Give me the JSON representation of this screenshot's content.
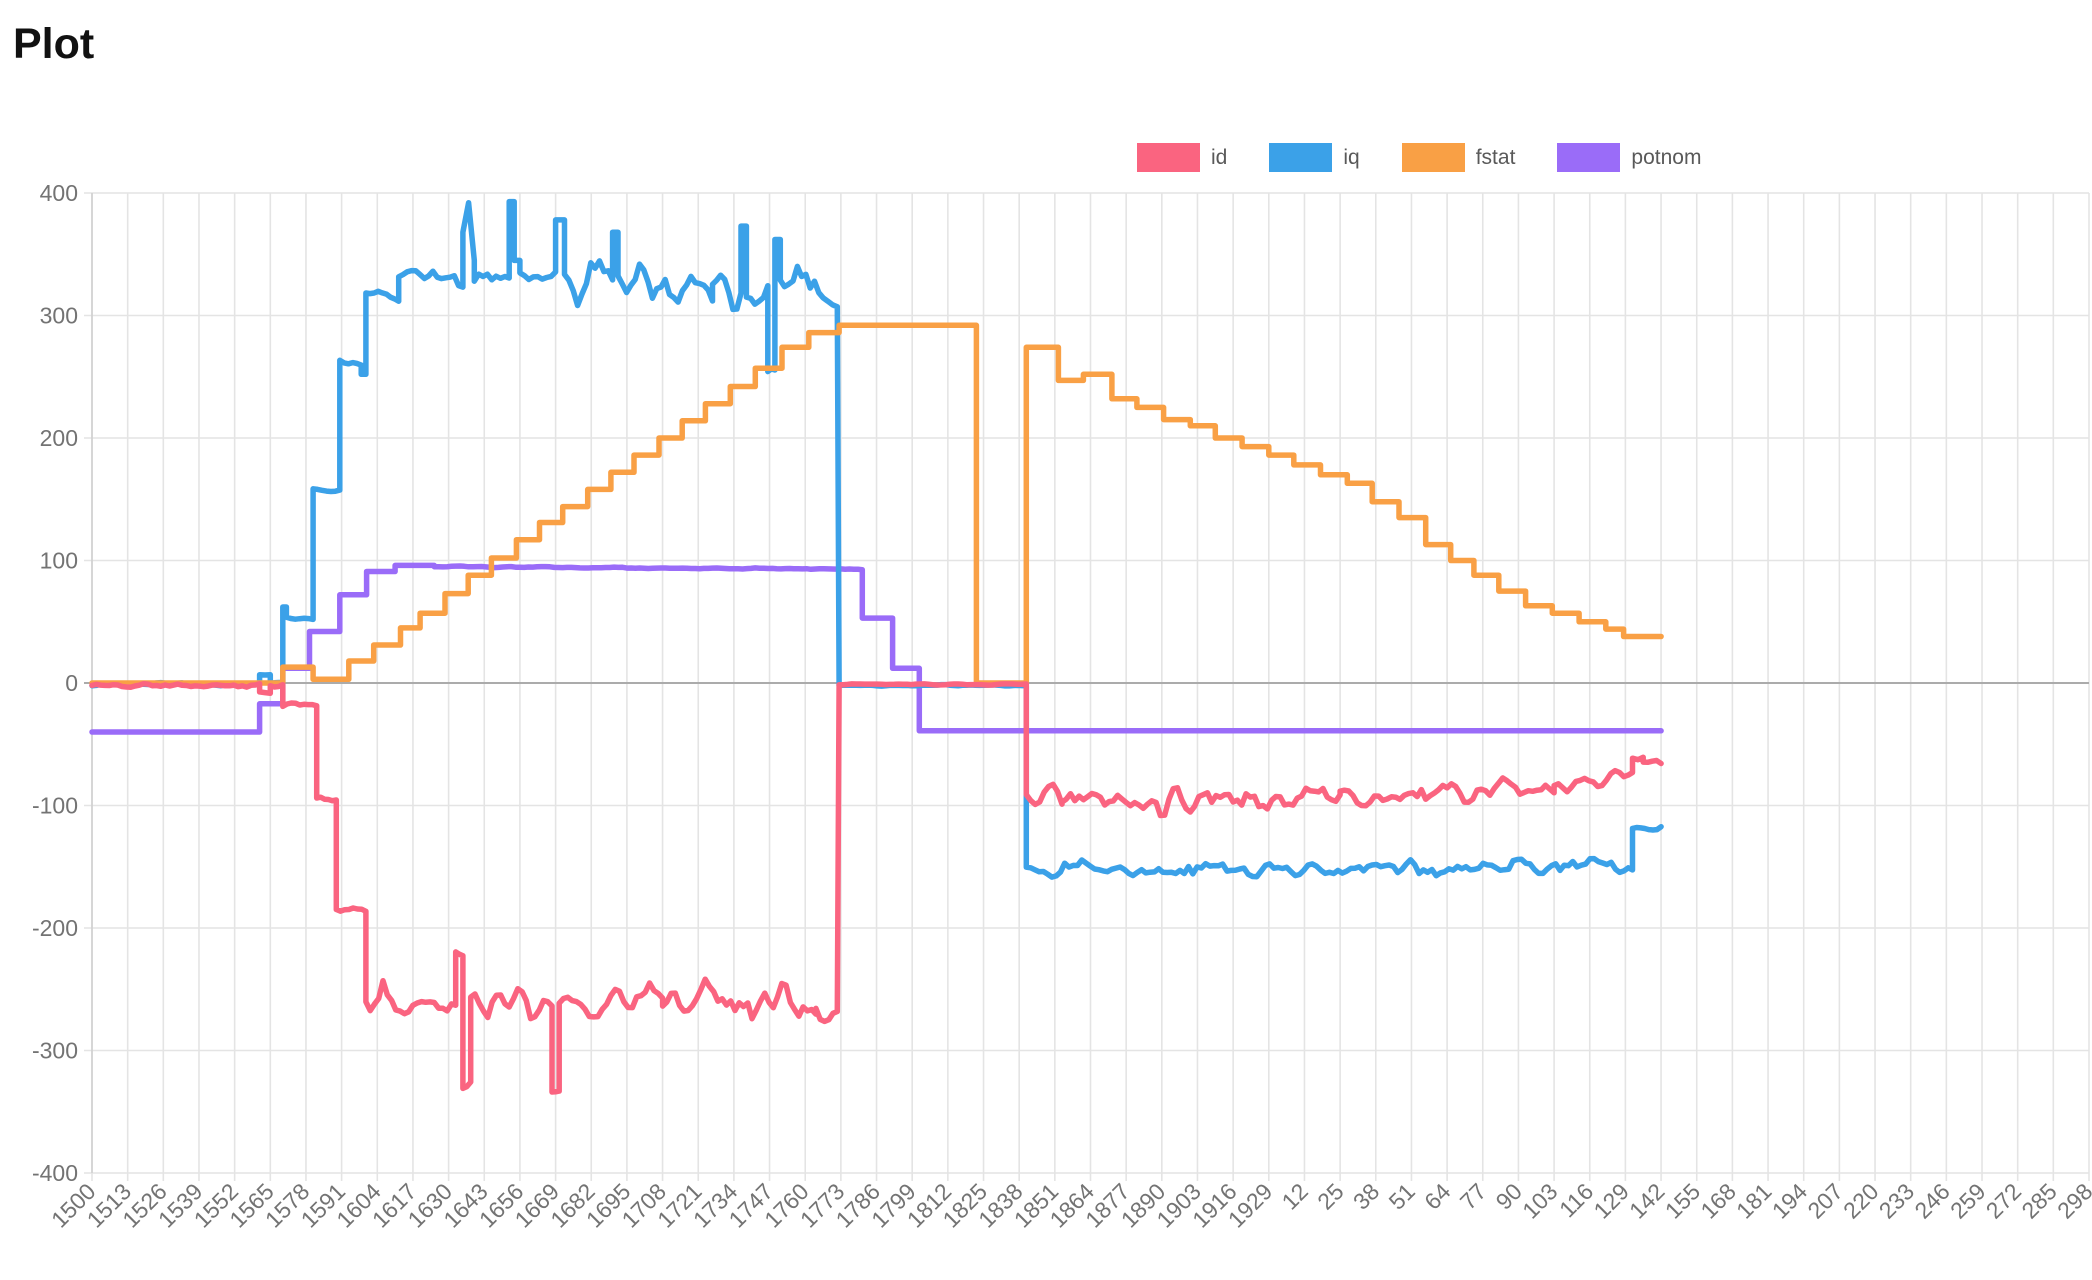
{
  "chart_data": {
    "type": "line",
    "title": "Plot",
    "x_encoding": "u = x-axis tick index; each tick step = 13 x-units; tick labels wrap after 1929",
    "x_ticks": [
      "1500",
      "1513",
      "1526",
      "1539",
      "1552",
      "1565",
      "1578",
      "1591",
      "1604",
      "1617",
      "1630",
      "1643",
      "1656",
      "1669",
      "1682",
      "1695",
      "1708",
      "1721",
      "1734",
      "1747",
      "1760",
      "1773",
      "1786",
      "1799",
      "1812",
      "1825",
      "1838",
      "1851",
      "1864",
      "1877",
      "1890",
      "1903",
      "1916",
      "1929",
      "12",
      "25",
      "38",
      "51",
      "64",
      "77",
      "90",
      "103",
      "116",
      "129",
      "142",
      "155",
      "168",
      "181",
      "194",
      "207",
      "220",
      "233",
      "246",
      "259",
      "272",
      "285",
      "298"
    ],
    "y_ticks": [
      400,
      300,
      200,
      100,
      0,
      -100,
      -200,
      -300,
      -400
    ],
    "y_range": [
      -400,
      400
    ],
    "data_u_max": 44.0,
    "grid": {
      "line_color": "#E4E4E4",
      "zero_line_color": "#ABABAB",
      "axis_text_color": "#737373"
    },
    "legend_position": "top-right",
    "draw_order": [
      "potnom",
      "iq",
      "fstat",
      "id"
    ],
    "series": [
      {
        "name": "id",
        "color": "#FA6480",
        "noise_seed": 11,
        "profile": [
          [
            0,
            4.7,
            -2,
            -2,
            2
          ],
          [
            4.7,
            5.0,
            -8,
            -8,
            1.5
          ],
          [
            5.0,
            5.35,
            -2,
            -2,
            1.5
          ],
          [
            5.35,
            6.3,
            -18,
            -18,
            2
          ],
          [
            6.3,
            6.85,
            -95,
            -95,
            2.5
          ],
          [
            6.85,
            7.68,
            -185,
            -185,
            2.5
          ],
          [
            7.68,
            10.2,
            -260,
            -260,
            12
          ],
          [
            10.2,
            10.4,
            -222,
            -222,
            3
          ],
          [
            10.4,
            10.62,
            -328,
            -328,
            3
          ],
          [
            10.62,
            12.9,
            -262,
            -262,
            13
          ],
          [
            12.9,
            13.1,
            -331,
            -331,
            3
          ],
          [
            13.1,
            16.0,
            -262,
            -258,
            15
          ],
          [
            16.0,
            20.3,
            -258,
            -256,
            16
          ],
          [
            20.3,
            20.9,
            -266,
            -270,
            8
          ],
          [
            20.95,
            26.2,
            -1,
            -1,
            0.5
          ],
          [
            26.2,
            27.2,
            -90,
            -90,
            11
          ],
          [
            27.2,
            35.0,
            -94,
            -92,
            12
          ],
          [
            35.0,
            41.0,
            -92,
            -88,
            11
          ],
          [
            41.0,
            43.2,
            -84,
            -76,
            6
          ],
          [
            43.2,
            43.5,
            -62,
            -62,
            3
          ],
          [
            43.5,
            44.0,
            -66,
            -64,
            3
          ]
        ]
      },
      {
        "name": "iq",
        "color": "#3BA1E8",
        "noise_seed": 23,
        "profile": [
          [
            0,
            4.7,
            -1,
            -1,
            1
          ],
          [
            4.7,
            5.0,
            7,
            7,
            1
          ],
          [
            5.0,
            5.35,
            0,
            0,
            1
          ],
          [
            5.35,
            5.45,
            62,
            62,
            0
          ],
          [
            5.45,
            6.2,
            52,
            52,
            1.5
          ],
          [
            6.2,
            6.95,
            158,
            158,
            2
          ],
          [
            6.95,
            7.55,
            262,
            262,
            2
          ],
          [
            7.55,
            7.68,
            252,
            252,
            0
          ],
          [
            7.68,
            8.6,
            318,
            318,
            6
          ],
          [
            8.6,
            10.4,
            330,
            332,
            9
          ],
          [
            10.4,
            10.56,
            368,
            392,
            0
          ],
          [
            10.56,
            10.72,
            392,
            345,
            0
          ],
          [
            10.72,
            11.7,
            333,
            333,
            9
          ],
          [
            11.7,
            11.84,
            393,
            393,
            0
          ],
          [
            11.84,
            12.0,
            345,
            345,
            0
          ],
          [
            12.0,
            13.0,
            332,
            332,
            9
          ],
          [
            13.0,
            13.25,
            378,
            378,
            0
          ],
          [
            13.25,
            14.6,
            330,
            330,
            16
          ],
          [
            14.6,
            14.75,
            368,
            368,
            0
          ],
          [
            14.75,
            17.4,
            328,
            328,
            17
          ],
          [
            17.4,
            18.2,
            322,
            322,
            22
          ],
          [
            18.2,
            18.35,
            373,
            373,
            0
          ],
          [
            18.35,
            18.95,
            320,
            318,
            20
          ],
          [
            18.95,
            19.15,
            257,
            257,
            3
          ],
          [
            19.15,
            19.3,
            362,
            362,
            0
          ],
          [
            19.3,
            20.5,
            328,
            324,
            13
          ],
          [
            20.5,
            20.9,
            312,
            308,
            5
          ],
          [
            20.95,
            26.2,
            -2,
            -2,
            0.5
          ],
          [
            26.2,
            43.2,
            -152,
            -151,
            6.5
          ],
          [
            43.2,
            44.0,
            -119,
            -118,
            2
          ]
        ]
      },
      {
        "name": "fstat",
        "color": "#F9A045",
        "noise_seed": 37,
        "profile": [
          [
            0,
            5.35,
            0,
            0,
            0
          ],
          [
            5.35,
            6.2,
            13,
            13,
            0
          ],
          [
            6.2,
            7.2,
            3,
            3,
            0
          ],
          [
            7.2,
            7.9,
            18,
            18,
            0
          ],
          [
            7.9,
            8.65,
            31,
            31,
            0
          ],
          [
            8.65,
            9.2,
            45,
            45,
            0
          ],
          [
            9.2,
            9.9,
            57,
            57,
            0
          ],
          [
            9.9,
            10.55,
            73,
            73,
            0
          ],
          [
            10.55,
            11.2,
            88,
            88,
            0
          ],
          [
            11.2,
            11.9,
            102,
            102,
            0
          ],
          [
            11.9,
            12.55,
            117,
            117,
            0
          ],
          [
            12.55,
            13.2,
            131,
            131,
            0
          ],
          [
            13.2,
            13.9,
            144,
            144,
            0
          ],
          [
            13.9,
            14.55,
            158,
            158,
            0
          ],
          [
            14.55,
            15.2,
            172,
            172,
            0
          ],
          [
            15.2,
            15.9,
            186,
            186,
            0
          ],
          [
            15.9,
            16.55,
            200,
            200,
            0
          ],
          [
            16.55,
            17.2,
            214,
            214,
            0
          ],
          [
            17.2,
            17.9,
            228,
            228,
            0
          ],
          [
            17.9,
            18.6,
            242,
            242,
            0
          ],
          [
            18.6,
            19.35,
            257,
            257,
            0
          ],
          [
            19.35,
            20.1,
            274,
            274,
            0
          ],
          [
            20.1,
            20.95,
            286,
            286,
            0
          ],
          [
            20.95,
            24.8,
            292,
            292,
            0
          ],
          [
            24.8,
            26.2,
            0,
            0,
            0
          ],
          [
            26.2,
            27.1,
            274,
            274,
            0
          ],
          [
            27.1,
            27.8,
            247,
            247,
            0
          ],
          [
            27.8,
            28.6,
            252,
            252,
            0
          ],
          [
            28.6,
            29.3,
            232,
            232,
            0
          ],
          [
            29.3,
            30.05,
            225,
            225,
            0
          ],
          [
            30.05,
            30.8,
            215,
            215,
            0
          ],
          [
            30.8,
            31.5,
            210,
            210,
            0
          ],
          [
            31.5,
            32.25,
            200,
            200,
            0
          ],
          [
            32.25,
            33.0,
            193,
            193,
            0
          ],
          [
            33.0,
            33.7,
            186,
            186,
            0
          ],
          [
            33.7,
            34.45,
            178,
            178,
            0
          ],
          [
            34.45,
            35.2,
            170,
            170,
            0
          ],
          [
            35.2,
            35.9,
            163,
            163,
            0
          ],
          [
            35.9,
            36.65,
            148,
            148,
            0
          ],
          [
            36.65,
            37.4,
            135,
            135,
            0
          ],
          [
            37.4,
            38.1,
            113,
            113,
            0
          ],
          [
            38.1,
            38.75,
            100,
            100,
            0
          ],
          [
            38.75,
            39.45,
            88,
            88,
            0
          ],
          [
            39.45,
            40.2,
            75,
            75,
            0
          ],
          [
            40.2,
            40.95,
            63,
            63,
            0
          ],
          [
            40.95,
            41.7,
            57,
            57,
            0
          ],
          [
            41.7,
            42.45,
            50,
            50,
            0
          ],
          [
            42.45,
            42.95,
            44,
            44,
            0
          ],
          [
            42.95,
            44.0,
            38,
            38,
            0
          ]
        ]
      },
      {
        "name": "potnom",
        "color": "#9A6CF8",
        "noise_seed": 53,
        "profile": [
          [
            0,
            4.7,
            -40,
            -40,
            0
          ],
          [
            4.7,
            5.35,
            -17,
            -17,
            0
          ],
          [
            5.35,
            6.1,
            12,
            12,
            0
          ],
          [
            6.1,
            6.95,
            42,
            42,
            0
          ],
          [
            6.95,
            7.7,
            72,
            72,
            0
          ],
          [
            7.7,
            8.5,
            91,
            91,
            0
          ],
          [
            8.5,
            9.6,
            96,
            96,
            0
          ],
          [
            9.6,
            21.6,
            95,
            93,
            0.5
          ],
          [
            21.6,
            22.45,
            53,
            53,
            0
          ],
          [
            22.45,
            23.2,
            12,
            12,
            0
          ],
          [
            23.2,
            44.0,
            -39,
            -39,
            0
          ]
        ]
      }
    ]
  }
}
